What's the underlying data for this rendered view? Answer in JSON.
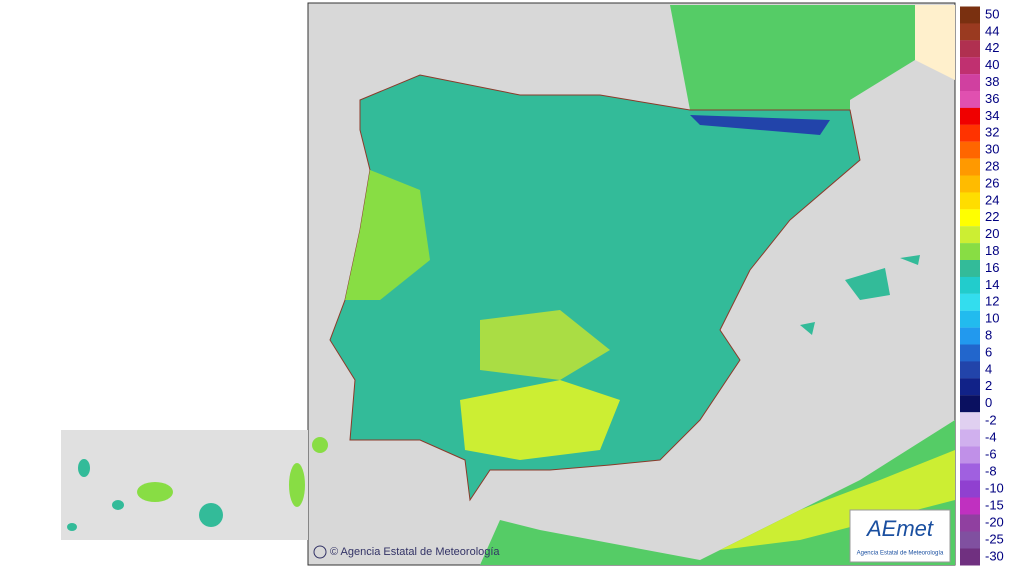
{
  "map": {
    "legend": {
      "items": [
        {
          "label": 50,
          "color": "#7a3010"
        },
        {
          "label": 44,
          "color": "#9a3a20"
        },
        {
          "label": 42,
          "color": "#b03050"
        },
        {
          "label": 40,
          "color": "#c03070"
        },
        {
          "label": 38,
          "color": "#d040a0"
        },
        {
          "label": 36,
          "color": "#e050b0"
        },
        {
          "label": 34,
          "color": "#f00000"
        },
        {
          "label": 32,
          "color": "#ff3300"
        },
        {
          "label": 30,
          "color": "#ff6600"
        },
        {
          "label": 28,
          "color": "#ff9900"
        },
        {
          "label": 26,
          "color": "#ffbb00"
        },
        {
          "label": 24,
          "color": "#ffdd00"
        },
        {
          "label": 22,
          "color": "#ffff00"
        },
        {
          "label": 20,
          "color": "#ccee33"
        },
        {
          "label": 18,
          "color": "#88dd44"
        },
        {
          "label": 16,
          "color": "#33bb99"
        },
        {
          "label": 14,
          "color": "#22cccc"
        },
        {
          "label": 12,
          "color": "#33ddee"
        },
        {
          "label": 10,
          "color": "#22bbee"
        },
        {
          "label": 8,
          "color": "#2299ee"
        },
        {
          "label": 6,
          "color": "#2266cc"
        },
        {
          "label": 4,
          "color": "#2244aa"
        },
        {
          "label": 2,
          "color": "#112288"
        },
        {
          "label": 0,
          "color": "#0a1060"
        },
        {
          "label": -2,
          "color": "#e0d0f0"
        },
        {
          "label": -4,
          "color": "#d0b0ee"
        },
        {
          "label": -6,
          "color": "#c090e8"
        },
        {
          "label": -8,
          "color": "#a060e0"
        },
        {
          "label": -10,
          "color": "#9040d0"
        },
        {
          "label": -15,
          "color": "#c030c0"
        },
        {
          "label": -20,
          "color": "#9040a0"
        },
        {
          "label": -25,
          "color": "#8050a0"
        },
        {
          "label": -30,
          "color": "#703080"
        }
      ]
    },
    "copyright": "© Agencia Estatal de Meteorología",
    "logo": {
      "name": "AEmet",
      "subtitle": "Agencia Estatal de Meteorología"
    }
  }
}
